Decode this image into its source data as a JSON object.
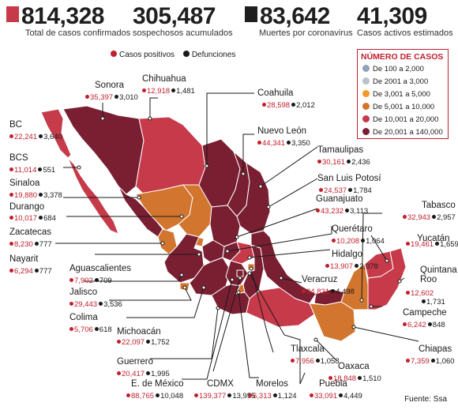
{
  "colors": {
    "accent": "#c0202f",
    "scale": [
      "#8fa4b8",
      "#b8c3cd",
      "#f29a2e",
      "#d2752e",
      "#c63a4a",
      "#7a1f32"
    ],
    "positive_dot": "#c0202f",
    "death_dot": "#1a1a1a"
  },
  "stats": [
    {
      "value": "814,328",
      "label": "Total de casos confirmados",
      "marker_color": "#c63a4a"
    },
    {
      "value": "305,487",
      "label": "sospechosos acumulados"
    },
    {
      "value": "83,642",
      "label": "Muertes por coronavirus",
      "marker_color": "#1f1f1f"
    },
    {
      "value": "41,309",
      "label": "Casos activos estimados"
    }
  ],
  "legend": {
    "positive": "Casos positivos",
    "deaths": "Defunciones"
  },
  "key": {
    "title": "NÚMERO DE CASOS",
    "items": [
      "De 100 a 2,000",
      "De 2001 a 3,000",
      "De 3,001 a 5,000",
      "De 5,001 a 10,000",
      "De 10,001 a 20,000",
      "De 20,001 a 140,000"
    ]
  },
  "states": [
    {
      "name": "BC",
      "cases": "22,241",
      "deaths": "3,640"
    },
    {
      "name": "BCS",
      "cases": "11,014",
      "deaths": "551"
    },
    {
      "name": "Sinaloa",
      "cases": "19,880",
      "deaths": "3,378"
    },
    {
      "name": "Durango",
      "cases": "10,017",
      "deaths": "684"
    },
    {
      "name": "Zacatecas",
      "cases": "8,230",
      "deaths": "777"
    },
    {
      "name": "Nayarit",
      "cases": "6,294",
      "deaths": "777"
    },
    {
      "name": "Aguascalientes",
      "cases": "7,902",
      "deaths": "709"
    },
    {
      "name": "Jalisco",
      "cases": "29,443",
      "deaths": "3,536"
    },
    {
      "name": "Colima",
      "cases": "5,706",
      "deaths": "618"
    },
    {
      "name": "Michoacán",
      "cases": "22,097",
      "deaths": "1,752"
    },
    {
      "name": "Guerrero",
      "cases": "20,417",
      "deaths": "1,995"
    },
    {
      "name": "E. de México",
      "cases": "88,765",
      "deaths": "10,048"
    },
    {
      "name": "CDMX",
      "cases": "139,377",
      "deaths": "13,955"
    },
    {
      "name": "Morelos",
      "cases": "6,313",
      "deaths": "1,124"
    },
    {
      "name": "Puebla",
      "cases": "33,091",
      "deaths": "4,449"
    },
    {
      "name": "Oaxaca",
      "cases": "18,848",
      "deaths": "1,510"
    },
    {
      "name": "Tlaxcala",
      "cases": "7,956",
      "deaths": "1,058"
    },
    {
      "name": "Chiapas",
      "cases": "7,359",
      "deaths": "1,060"
    },
    {
      "name": "Campeche",
      "cases": "6,242",
      "deaths": "848"
    },
    {
      "name": "Quintana Roo",
      "cases": "12,602",
      "deaths": "1,731"
    },
    {
      "name": "Yucatán",
      "cases": "19,461",
      "deaths": "1,659"
    },
    {
      "name": "Tabasco",
      "cases": "32,943",
      "deaths": "2,957"
    },
    {
      "name": "Veracruz",
      "cases": "34,831",
      "deaths": "4,498"
    },
    {
      "name": "Hidalgo",
      "cases": "13,907",
      "deaths": "2,078"
    },
    {
      "name": "Querétaro",
      "cases": "10,208",
      "deaths": "1,064"
    },
    {
      "name": "Guanajuato",
      "cases": "43,232",
      "deaths": "3,113"
    },
    {
      "name": "San Luis Potosí",
      "cases": "24,537",
      "deaths": "1,784"
    },
    {
      "name": "Tamaulipas",
      "cases": "30,161",
      "deaths": "2,436"
    },
    {
      "name": "Nuevo León",
      "cases": "44,341",
      "deaths": "3,350"
    },
    {
      "name": "Coahuila",
      "cases": "28,598",
      "deaths": "2,012"
    },
    {
      "name": "Chihuahua",
      "cases": "12,918",
      "deaths": "1,481"
    },
    {
      "name": "Sonora",
      "cases": "35,397",
      "deaths": "3,010"
    }
  ],
  "source": "Fuente: Ssa"
}
